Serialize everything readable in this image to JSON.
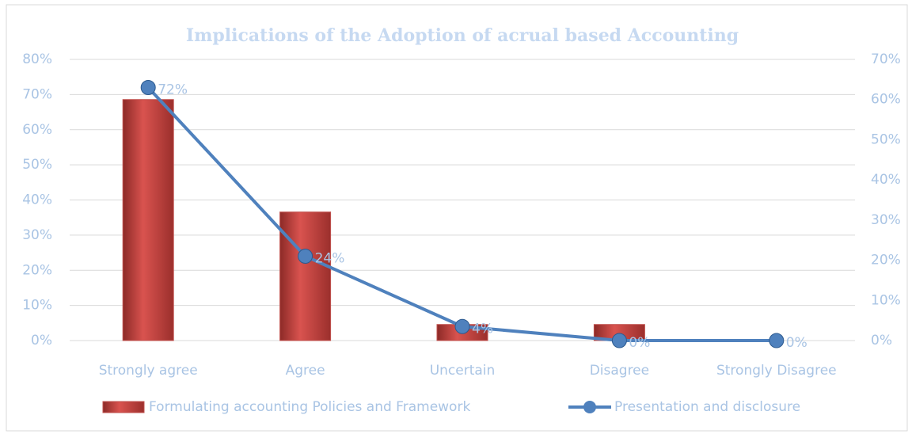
{
  "chart_data": {
    "type": "bar-line",
    "title": "Implications of the Adoption of acrual based Accounting",
    "categories": [
      "Strongly agree",
      "Agree",
      "Uncertain",
      "Disagree",
      "Strongly Disagree"
    ],
    "series": [
      {
        "name": "Formulating accounting Policies and Framework",
        "type": "bar",
        "color": "#c0504d",
        "axis": "y2",
        "values": [
          60,
          32,
          4,
          4,
          0
        ]
      },
      {
        "name": "Presentation and disclosure",
        "type": "line",
        "color": "#4f81bd",
        "values": [
          72,
          24,
          4,
          0,
          0
        ],
        "value_labels": [
          "72%",
          "24%",
          "4%",
          "0%",
          "0%"
        ]
      }
    ],
    "ylim": [
      0,
      80
    ],
    "yticks": [
      {
        "value": 0,
        "label": "0%"
      },
      {
        "value": 10,
        "label": "10%"
      },
      {
        "value": 20,
        "label": "20%"
      },
      {
        "value": 30,
        "label": "30%"
      },
      {
        "value": 40,
        "label": "40%"
      },
      {
        "value": 50,
        "label": "50%"
      },
      {
        "value": 60,
        "label": "60%"
      },
      {
        "value": 70,
        "label": "70%"
      },
      {
        "value": 80,
        "label": "80%"
      }
    ],
    "y2lim": [
      0,
      70
    ],
    "y2ticks": [
      {
        "value": 0,
        "label": "0%"
      },
      {
        "value": 10,
        "label": "10%"
      },
      {
        "value": 20,
        "label": "20%"
      },
      {
        "value": 30,
        "label": "30%"
      },
      {
        "value": 40,
        "label": "40%"
      },
      {
        "value": 50,
        "label": "50%"
      },
      {
        "value": 60,
        "label": "60%"
      },
      {
        "value": 70,
        "label": "70%"
      }
    ],
    "grid": true,
    "legend": "bottom"
  }
}
